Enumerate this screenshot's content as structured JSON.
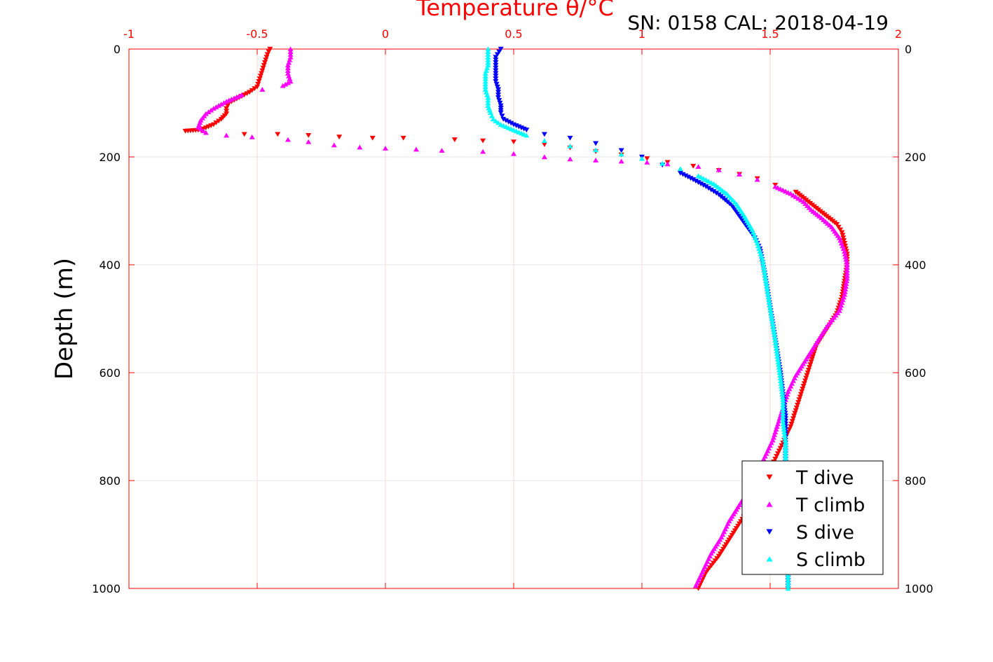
{
  "chart_data": {
    "type": "scatter",
    "title": "Temperature θ/°C",
    "annotation": "SN: 0158  CAL: 2018-04-19",
    "xlabel": "Temperature θ/°C",
    "ylabel": "Depth (m)",
    "xlim": [
      -1,
      2
    ],
    "ylim": [
      0,
      1000
    ],
    "y_reversed": true,
    "x_ticks": [
      "-1",
      "-0.5",
      "0",
      "0.5",
      "1",
      "1.5",
      "2"
    ],
    "x_tick_values": [
      -1,
      -0.5,
      0,
      0.5,
      1,
      1.5,
      2
    ],
    "y_ticks": [
      "0",
      "200",
      "400",
      "600",
      "800",
      "1000"
    ],
    "y_tick_values": [
      0,
      200,
      400,
      600,
      800,
      1000
    ],
    "grid": true,
    "legend_position": "bottom-right",
    "series": [
      {
        "name": "T dive",
        "color": "#ff0000",
        "marker": "triangle-down",
        "points": [
          [
            -0.45,
            0
          ],
          [
            -0.46,
            10
          ],
          [
            -0.47,
            25
          ],
          [
            -0.48,
            40
          ],
          [
            -0.49,
            55
          ],
          [
            -0.5,
            70
          ],
          [
            -0.53,
            80
          ],
          [
            -0.57,
            90
          ],
          [
            -0.61,
            100
          ],
          [
            -0.62,
            110
          ],
          [
            -0.62,
            120
          ],
          [
            -0.64,
            130
          ],
          [
            -0.67,
            140
          ],
          [
            -0.72,
            150
          ],
          [
            -0.78,
            152
          ],
          [
            -0.55,
            158
          ],
          [
            -0.42,
            158
          ],
          [
            -0.3,
            160
          ],
          [
            -0.18,
            163
          ],
          [
            -0.05,
            165
          ],
          [
            0.07,
            165
          ],
          [
            0.27,
            168
          ],
          [
            0.38,
            170
          ],
          [
            0.5,
            172
          ],
          [
            0.62,
            177
          ],
          [
            0.72,
            183
          ],
          [
            0.82,
            190
          ],
          [
            0.92,
            196
          ],
          [
            1.02,
            203
          ],
          [
            1.1,
            210
          ],
          [
            1.2,
            217
          ],
          [
            1.3,
            225
          ],
          [
            1.38,
            232
          ],
          [
            1.45,
            240
          ],
          [
            1.52,
            252
          ],
          [
            1.6,
            265
          ],
          [
            1.64,
            280
          ],
          [
            1.68,
            295
          ],
          [
            1.72,
            310
          ],
          [
            1.76,
            325
          ],
          [
            1.78,
            340
          ],
          [
            1.79,
            360
          ],
          [
            1.8,
            380
          ],
          [
            1.8,
            400
          ],
          [
            1.79,
            430
          ],
          [
            1.78,
            460
          ],
          [
            1.76,
            490
          ],
          [
            1.72,
            520
          ],
          [
            1.68,
            550
          ],
          [
            1.66,
            580
          ],
          [
            1.64,
            610
          ],
          [
            1.62,
            640
          ],
          [
            1.6,
            670
          ],
          [
            1.58,
            700
          ],
          [
            1.55,
            730
          ],
          [
            1.52,
            760
          ],
          [
            1.49,
            790
          ],
          [
            1.46,
            820
          ],
          [
            1.42,
            850
          ],
          [
            1.38,
            880
          ],
          [
            1.34,
            910
          ],
          [
            1.3,
            940
          ],
          [
            1.25,
            970
          ],
          [
            1.22,
            1000
          ]
        ]
      },
      {
        "name": "T climb",
        "color": "#ff00ff",
        "marker": "triangle-up",
        "points": [
          [
            -0.37,
            0
          ],
          [
            -0.37,
            15
          ],
          [
            -0.38,
            30
          ],
          [
            -0.38,
            45
          ],
          [
            -0.37,
            60
          ],
          [
            -0.4,
            68
          ],
          [
            -0.48,
            75
          ],
          [
            -0.56,
            85
          ],
          [
            -0.62,
            97
          ],
          [
            -0.67,
            110
          ],
          [
            -0.7,
            120
          ],
          [
            -0.72,
            132
          ],
          [
            -0.73,
            145
          ],
          [
            -0.7,
            155
          ],
          [
            -0.62,
            160
          ],
          [
            -0.52,
            163
          ],
          [
            -0.38,
            168
          ],
          [
            -0.3,
            172
          ],
          [
            -0.2,
            178
          ],
          [
            -0.1,
            182
          ],
          [
            0.0,
            184
          ],
          [
            0.12,
            186
          ],
          [
            0.22,
            188
          ],
          [
            0.38,
            190
          ],
          [
            0.5,
            194
          ],
          [
            0.62,
            200
          ],
          [
            0.72,
            204
          ],
          [
            0.82,
            206
          ],
          [
            0.92,
            208
          ],
          [
            1.02,
            210
          ],
          [
            1.1,
            213
          ],
          [
            1.22,
            218
          ],
          [
            1.3,
            224
          ],
          [
            1.38,
            232
          ],
          [
            1.45,
            242
          ],
          [
            1.52,
            255
          ],
          [
            1.58,
            268
          ],
          [
            1.63,
            283
          ],
          [
            1.66,
            298
          ],
          [
            1.7,
            313
          ],
          [
            1.74,
            330
          ],
          [
            1.77,
            350
          ],
          [
            1.79,
            375
          ],
          [
            1.8,
            400
          ],
          [
            1.8,
            425
          ],
          [
            1.79,
            455
          ],
          [
            1.77,
            485
          ],
          [
            1.72,
            515
          ],
          [
            1.68,
            545
          ],
          [
            1.64,
            575
          ],
          [
            1.6,
            605
          ],
          [
            1.57,
            635
          ],
          [
            1.55,
            665
          ],
          [
            1.53,
            695
          ],
          [
            1.51,
            725
          ],
          [
            1.48,
            755
          ],
          [
            1.45,
            785
          ],
          [
            1.42,
            815
          ],
          [
            1.38,
            845
          ],
          [
            1.34,
            875
          ],
          [
            1.31,
            905
          ],
          [
            1.27,
            935
          ],
          [
            1.24,
            965
          ],
          [
            1.21,
            995
          ]
        ]
      },
      {
        "name": "S dive",
        "color": "#0000ff",
        "marker": "triangle-down",
        "points": [
          [
            0.45,
            0
          ],
          [
            0.43,
            15
          ],
          [
            0.43,
            30
          ],
          [
            0.43,
            45
          ],
          [
            0.43,
            60
          ],
          [
            0.44,
            75
          ],
          [
            0.44,
            90
          ],
          [
            0.45,
            105
          ],
          [
            0.45,
            118
          ],
          [
            0.46,
            130
          ],
          [
            0.5,
            140
          ],
          [
            0.55,
            150
          ],
          [
            0.62,
            158
          ],
          [
            0.72,
            165
          ],
          [
            0.82,
            175
          ],
          [
            0.92,
            188
          ],
          [
            1.0,
            200
          ],
          [
            1.08,
            215
          ],
          [
            1.15,
            230
          ],
          [
            1.2,
            242
          ],
          [
            1.25,
            255
          ],
          [
            1.3,
            270
          ],
          [
            1.35,
            290
          ],
          [
            1.38,
            310
          ],
          [
            1.41,
            330
          ],
          [
            1.44,
            350
          ],
          [
            1.46,
            370
          ],
          [
            1.47,
            395
          ],
          [
            1.48,
            420
          ],
          [
            1.49,
            450
          ],
          [
            1.5,
            480
          ],
          [
            1.51,
            510
          ],
          [
            1.52,
            540
          ],
          [
            1.53,
            570
          ],
          [
            1.54,
            600
          ],
          [
            1.55,
            640
          ],
          [
            1.56,
            680
          ],
          [
            1.56,
            720
          ],
          [
            1.56,
            760
          ],
          [
            1.56,
            800
          ],
          [
            1.57,
            840
          ],
          [
            1.57,
            880
          ],
          [
            1.57,
            920
          ],
          [
            1.57,
            960
          ],
          [
            1.57,
            1000
          ]
        ]
      },
      {
        "name": "S climb",
        "color": "#00ffff",
        "marker": "triangle-up",
        "points": [
          [
            0.4,
            0
          ],
          [
            0.4,
            15
          ],
          [
            0.4,
            30
          ],
          [
            0.39,
            45
          ],
          [
            0.39,
            60
          ],
          [
            0.39,
            75
          ],
          [
            0.4,
            90
          ],
          [
            0.4,
            105
          ],
          [
            0.41,
            118
          ],
          [
            0.42,
            130
          ],
          [
            0.45,
            140
          ],
          [
            0.5,
            150
          ],
          [
            0.55,
            160
          ],
          [
            0.62,
            170
          ],
          [
            0.72,
            180
          ],
          [
            0.82,
            187
          ],
          [
            0.92,
            195
          ],
          [
            1.0,
            203
          ],
          [
            1.08,
            212
          ],
          [
            1.15,
            222
          ],
          [
            1.22,
            235
          ],
          [
            1.28,
            250
          ],
          [
            1.33,
            268
          ],
          [
            1.37,
            288
          ],
          [
            1.4,
            310
          ],
          [
            1.43,
            335
          ],
          [
            1.45,
            360
          ],
          [
            1.47,
            390
          ],
          [
            1.48,
            420
          ],
          [
            1.49,
            450
          ],
          [
            1.5,
            480
          ],
          [
            1.51,
            510
          ],
          [
            1.52,
            540
          ],
          [
            1.53,
            575
          ],
          [
            1.54,
            610
          ],
          [
            1.55,
            650
          ],
          [
            1.55,
            690
          ],
          [
            1.56,
            730
          ],
          [
            1.56,
            770
          ],
          [
            1.56,
            810
          ],
          [
            1.56,
            850
          ],
          [
            1.57,
            890
          ],
          [
            1.57,
            930
          ],
          [
            1.57,
            970
          ],
          [
            1.57,
            1000
          ]
        ]
      }
    ]
  },
  "colors": {
    "axes_frame": "#ff0000",
    "grid": "#e6e6e6",
    "background": "#ffffff"
  }
}
